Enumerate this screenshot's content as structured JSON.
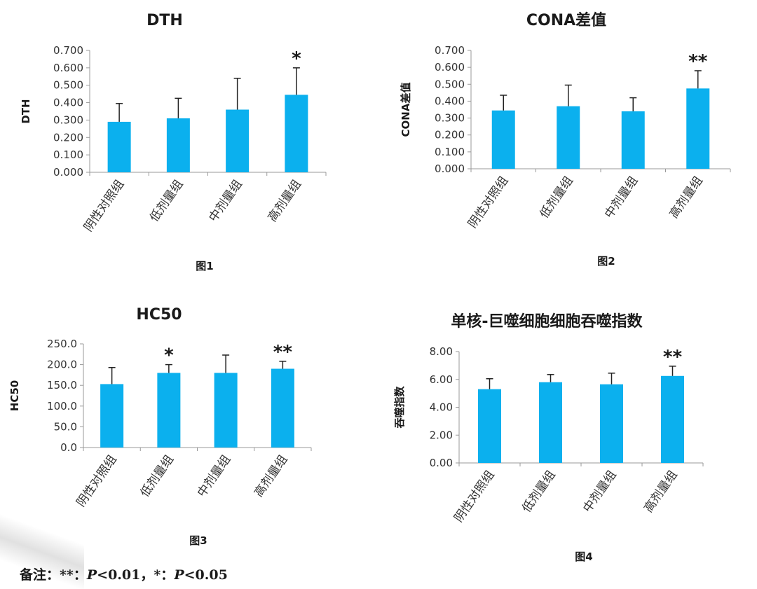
{
  "theme": {
    "bar_color": "#0bb0ee",
    "axis_color": "#999999",
    "error_color": "#222222"
  },
  "chart_data": [
    {
      "type": "bar",
      "title": "DTH",
      "ylabel": "DTH",
      "caption": "图1",
      "categories": [
        "阴性对照组",
        "低剂量组",
        "中剂量组",
        "高剂量组"
      ],
      "values": [
        0.29,
        0.31,
        0.36,
        0.445
      ],
      "errors": [
        0.105,
        0.115,
        0.18,
        0.155
      ],
      "significance": [
        "",
        "",
        "",
        "*"
      ],
      "ylim": [
        0,
        0.7
      ],
      "yticks": [
        "0.000",
        "0.100",
        "0.200",
        "0.300",
        "0.400",
        "0.500",
        "0.600",
        "0.700"
      ]
    },
    {
      "type": "bar",
      "title": "CONA差值",
      "ylabel": "CONA差值",
      "caption": "图2",
      "categories": [
        "阴性对照组",
        "低剂量组",
        "中剂量组",
        "高剂量组"
      ],
      "values": [
        0.345,
        0.37,
        0.34,
        0.475
      ],
      "errors": [
        0.09,
        0.125,
        0.08,
        0.105
      ],
      "significance": [
        "",
        "",
        "",
        "**"
      ],
      "ylim": [
        0,
        0.7
      ],
      "yticks": [
        "0.000",
        "0.100",
        "0.200",
        "0.300",
        "0.400",
        "0.500",
        "0.600",
        "0.700"
      ]
    },
    {
      "type": "bar",
      "title": "HC50",
      "ylabel": "HC50",
      "caption": "图3",
      "categories": [
        "阴性对照组",
        "低剂量组",
        "中剂量组",
        "高剂量组"
      ],
      "values": [
        153,
        180,
        180,
        190
      ],
      "errors": [
        40,
        20,
        43,
        18
      ],
      "significance": [
        "",
        "*",
        "",
        "**"
      ],
      "ylim": [
        0,
        250
      ],
      "yticks": [
        "0.0",
        "50.0",
        "100.0",
        "150.0",
        "200.0",
        "250.0"
      ]
    },
    {
      "type": "bar",
      "title": "单核-巨噬细胞细胞吞噬指数",
      "ylabel": "吞噬指数",
      "caption": "图4",
      "categories": [
        "阴性对照组",
        "低剂量组",
        "中剂量组",
        "高剂量组"
      ],
      "values": [
        5.3,
        5.8,
        5.65,
        6.25
      ],
      "errors": [
        0.75,
        0.55,
        0.8,
        0.7
      ],
      "significance": [
        "",
        "",
        "",
        "**"
      ],
      "ylim": [
        0,
        8
      ],
      "yticks": [
        "0.00",
        "2.00",
        "4.00",
        "6.00",
        "8.00"
      ]
    }
  ],
  "footnote": {
    "prefix": "备注：**：",
    "p1_label": "P",
    "p1_value": "<0.01，*：",
    "p2_label": "P",
    "p2_value": "<0.05"
  }
}
